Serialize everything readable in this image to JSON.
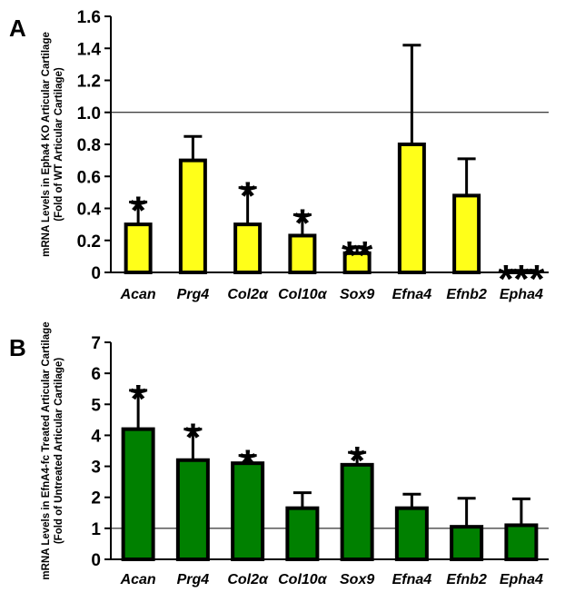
{
  "chart_data": [
    {
      "type": "bar",
      "panel_label": "A",
      "ylabel_lines": [
        "mRNA Levels in Epha4 KO Articular Cartilage",
        "(Fold of WT Articular Cartilage)"
      ],
      "categories": [
        "Acan",
        "Prg4",
        "Col2α",
        "Col10α",
        "Sox9",
        "Efna4",
        "Efnb2",
        "Epha4"
      ],
      "values": [
        0.3,
        0.7,
        0.3,
        0.23,
        0.12,
        0.8,
        0.48,
        0.01
      ],
      "errors": [
        0.14,
        0.15,
        0.23,
        0.13,
        0.04,
        0.62,
        0.23,
        0.0
      ],
      "significance": [
        "*",
        "",
        "*",
        "*",
        "**",
        "",
        "",
        "***"
      ],
      "ylim": [
        0,
        1.6
      ],
      "yticks": [
        "0",
        "0.2",
        "0.4",
        "0.6",
        "0.8",
        "1.0",
        "1.2",
        "1.4",
        "1.6"
      ],
      "reference_line": 1.0,
      "bar_color": "#ffff19",
      "grid": false
    },
    {
      "type": "bar",
      "panel_label": "B",
      "ylabel_lines": [
        "mRNA Levels in EfnA4-fc Treated Articular Cartilage",
        "(Fold of Untreated Articular Cartilage)"
      ],
      "categories": [
        "Acan",
        "Prg4",
        "Col2α",
        "Col10α",
        "Sox9",
        "Efna4",
        "Efnb2",
        "Epha4"
      ],
      "values": [
        4.2,
        3.2,
        3.1,
        1.65,
        3.05,
        1.65,
        1.05,
        1.1
      ],
      "errors": [
        1.25,
        1.0,
        0.25,
        0.5,
        0.4,
        0.45,
        0.92,
        0.85
      ],
      "significance": [
        "*",
        "*",
        "*",
        "",
        "*",
        "",
        "",
        ""
      ],
      "ylim": [
        0,
        7
      ],
      "yticks": [
        "0",
        "1",
        "2",
        "3",
        "4",
        "5",
        "6",
        "7"
      ],
      "reference_line": 1,
      "bar_color": "#008000",
      "grid": false
    }
  ]
}
